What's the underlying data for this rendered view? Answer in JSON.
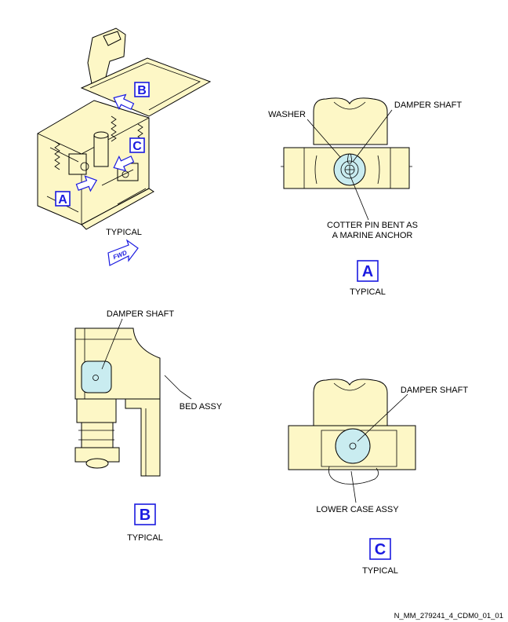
{
  "overview": {
    "caption": "TYPICAL",
    "callouts": [
      "B",
      "C",
      "A"
    ],
    "fwd_label": "FWD"
  },
  "view_a": {
    "labels": {
      "washer": "WASHER",
      "damper_shaft": "DAMPER SHAFT",
      "cotter_pin_line1": "COTTER PIN BENT AS",
      "cotter_pin_line2": "A MARINE ANCHOR"
    },
    "tag": "A",
    "caption": "TYPICAL"
  },
  "view_b": {
    "labels": {
      "damper_shaft": "DAMPER SHAFT",
      "bed_assy": "BED ASSY"
    },
    "tag": "B",
    "caption": "TYPICAL"
  },
  "view_c": {
    "labels": {
      "damper_shaft": "DAMPER SHAFT",
      "lower_case_assy": "LOWER CASE ASSY"
    },
    "tag": "C",
    "caption": "TYPICAL"
  },
  "figure_id": "N_MM_279241_4_CDM0_01_01",
  "colors": {
    "part_fill": "#fdf7c6",
    "shaft_fill": "#c9ecf0",
    "callout_blue": "#1a1ae0"
  }
}
